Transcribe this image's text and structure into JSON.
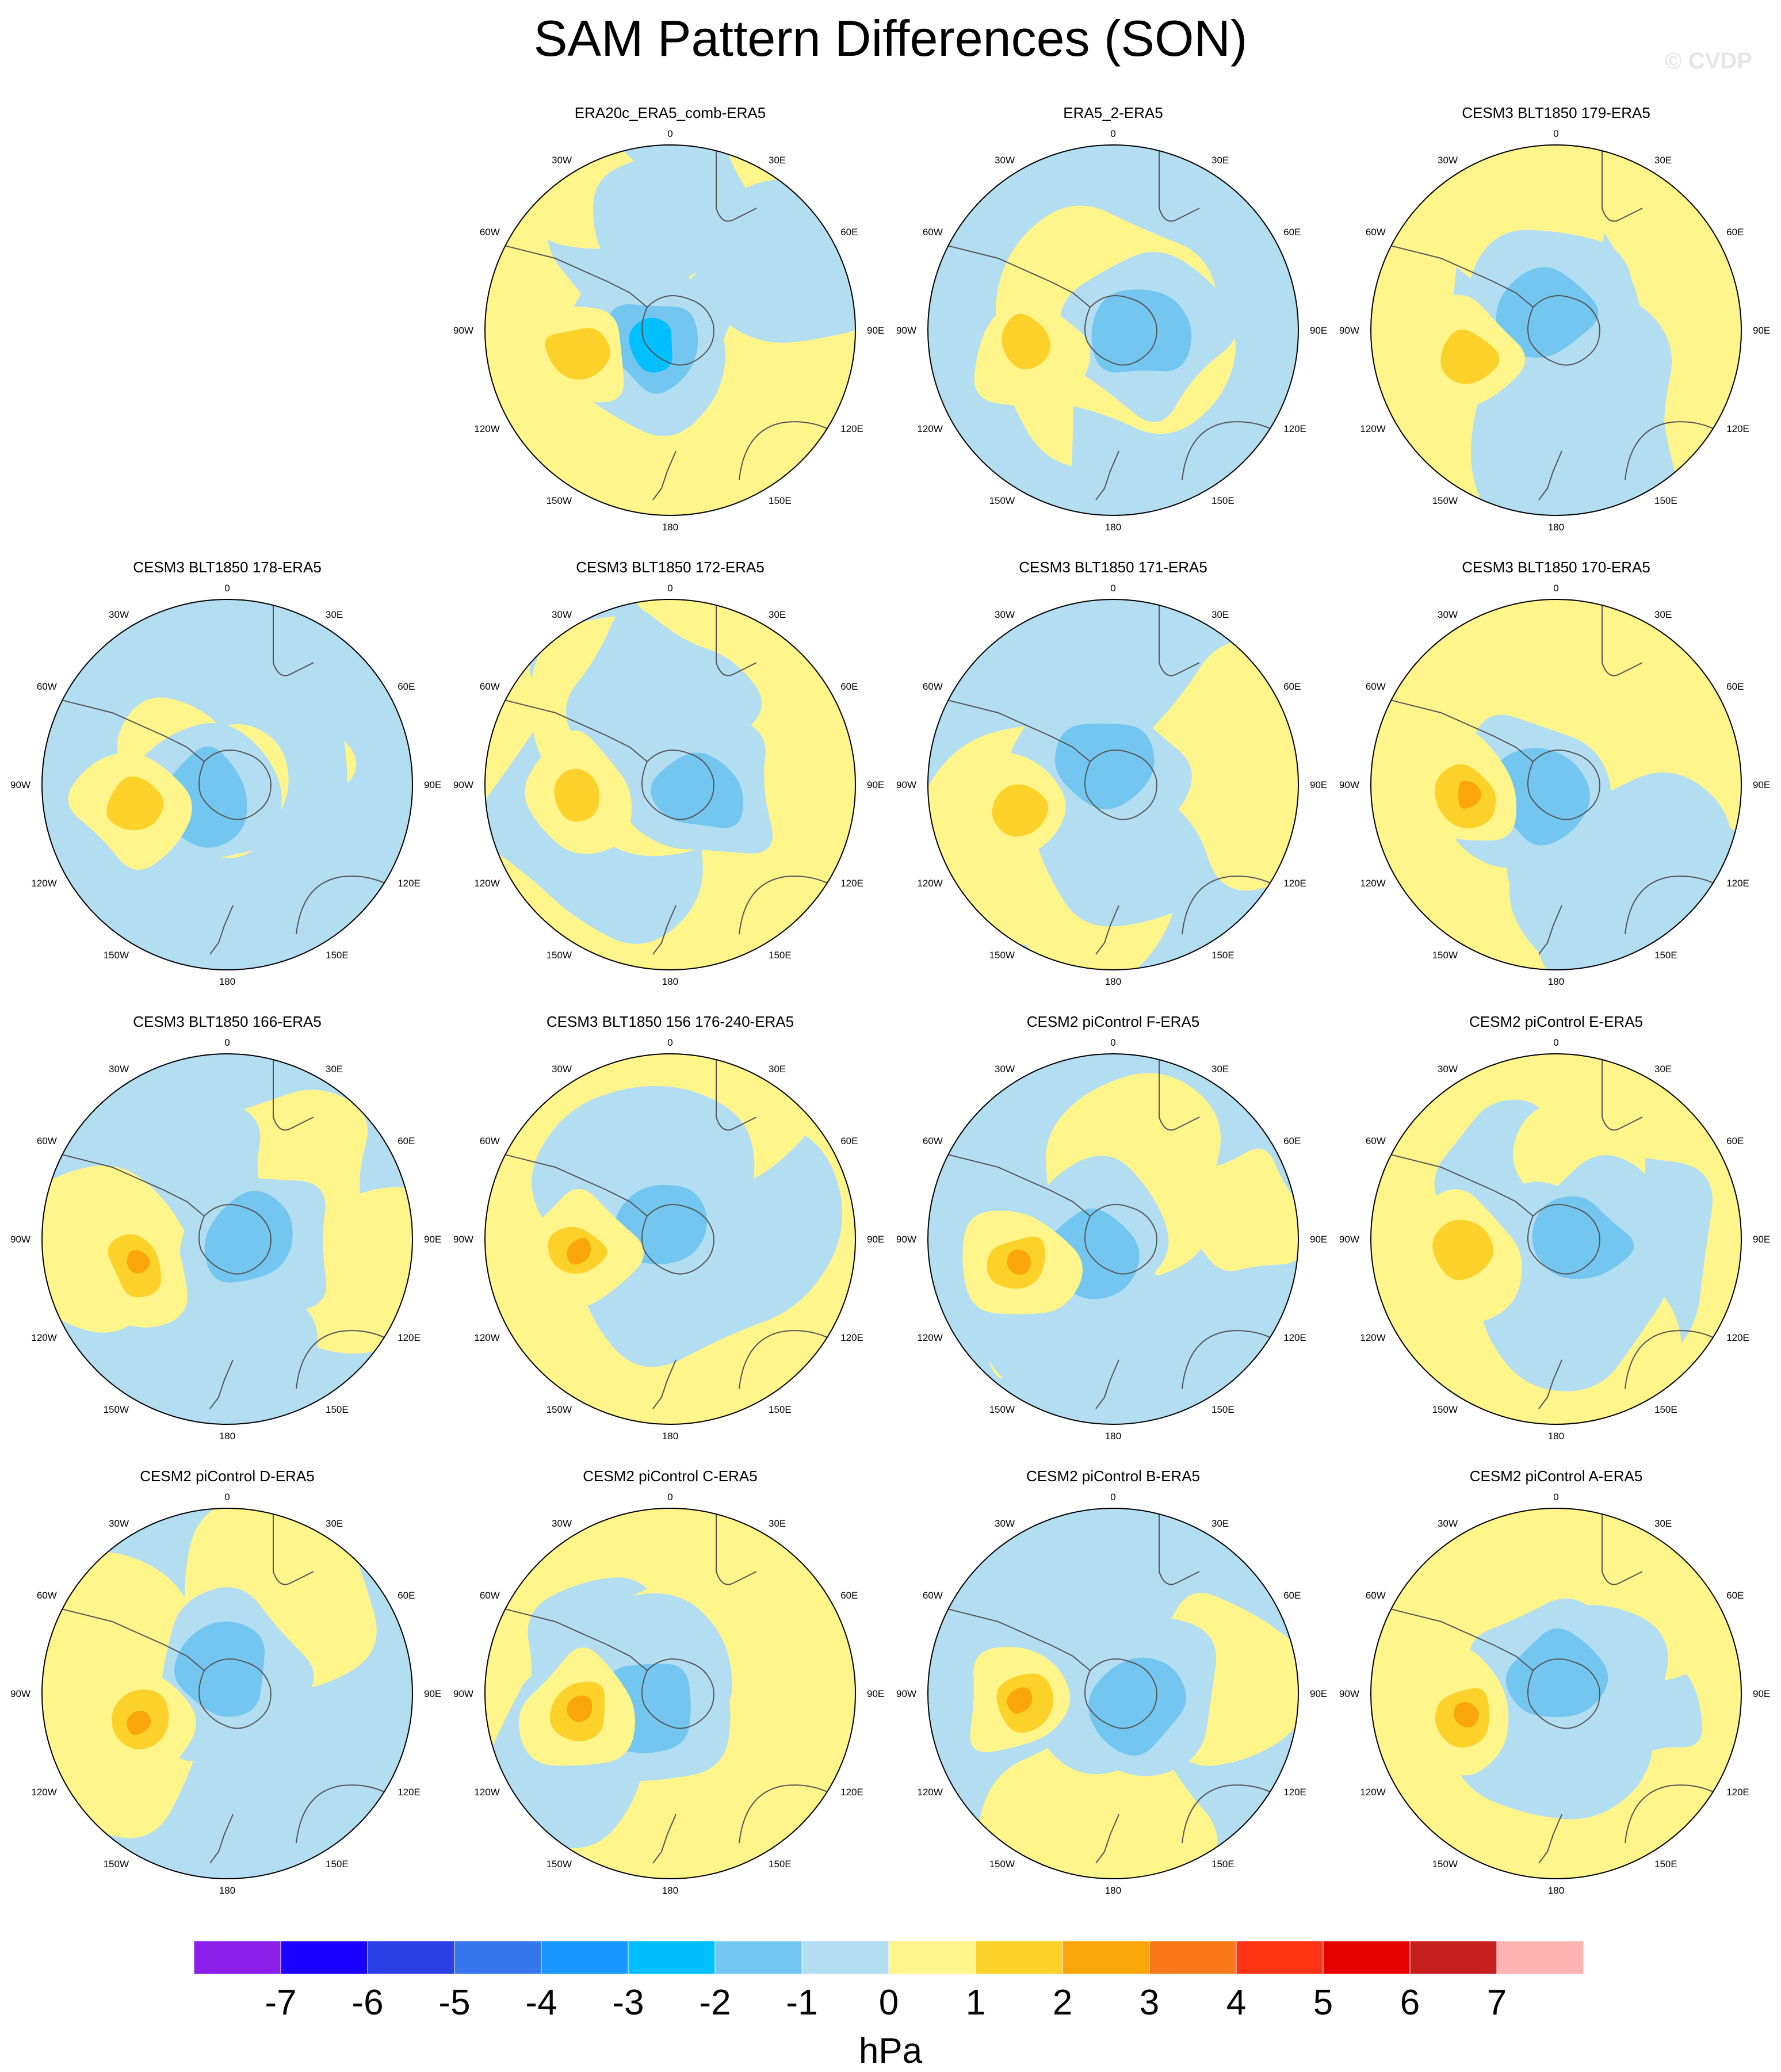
{
  "title": "SAM Pattern Differences (SON)",
  "watermark": "© CVDP",
  "panels": [
    {
      "title": "ERA20c_ERA5_comb-ERA5",
      "row": 0,
      "col": 1
    },
    {
      "title": "ERA5_2-ERA5",
      "row": 0,
      "col": 2
    },
    {
      "title": "CESM3 BLT1850 179-ERA5",
      "row": 0,
      "col": 3
    },
    {
      "title": "CESM3 BLT1850 178-ERA5",
      "row": 1,
      "col": 0
    },
    {
      "title": "CESM3 BLT1850 172-ERA5",
      "row": 1,
      "col": 1
    },
    {
      "title": "CESM3 BLT1850 171-ERA5",
      "row": 1,
      "col": 2
    },
    {
      "title": "CESM3 BLT1850 170-ERA5",
      "row": 1,
      "col": 3
    },
    {
      "title": "CESM3 BLT1850 166-ERA5",
      "row": 2,
      "col": 0
    },
    {
      "title": "CESM3 BLT1850 156 176-240-ERA5",
      "row": 2,
      "col": 1
    },
    {
      "title": "CESM2 piControl F-ERA5",
      "row": 2,
      "col": 2
    },
    {
      "title": "CESM2 piControl E-ERA5",
      "row": 2,
      "col": 3
    },
    {
      "title": "CESM2 piControl D-ERA5",
      "row": 3,
      "col": 0
    },
    {
      "title": "CESM2 piControl C-ERA5",
      "row": 3,
      "col": 1
    },
    {
      "title": "CESM2 piControl B-ERA5",
      "row": 3,
      "col": 2
    },
    {
      "title": "CESM2 piControl A-ERA5",
      "row": 3,
      "col": 3
    }
  ],
  "longitude_labels": [
    "0",
    "30E",
    "60E",
    "90E",
    "120E",
    "150E",
    "180",
    "150W",
    "120W",
    "90W",
    "60W",
    "30W"
  ],
  "colorbar": {
    "colors": [
      "#8B1EE8",
      "#1C00FF",
      "#2B3FE6",
      "#3777EE",
      "#1A96FF",
      "#00BFFF",
      "#73C6F0",
      "#B3DEF2",
      "#FFF58A",
      "#FCD22A",
      "#FAA50A",
      "#FA7819",
      "#FF3214",
      "#E60000",
      "#C81E1E",
      "#FFB3B3"
    ],
    "ticks": [
      "-7",
      "-6",
      "-5",
      "-4",
      "-3",
      "-2",
      "-1",
      "0",
      "1",
      "2",
      "3",
      "4",
      "5",
      "6",
      "7"
    ],
    "units": "hPa"
  },
  "map_colors": {
    "negative": "#B3DEF2",
    "positive": "#FFF58A"
  }
}
